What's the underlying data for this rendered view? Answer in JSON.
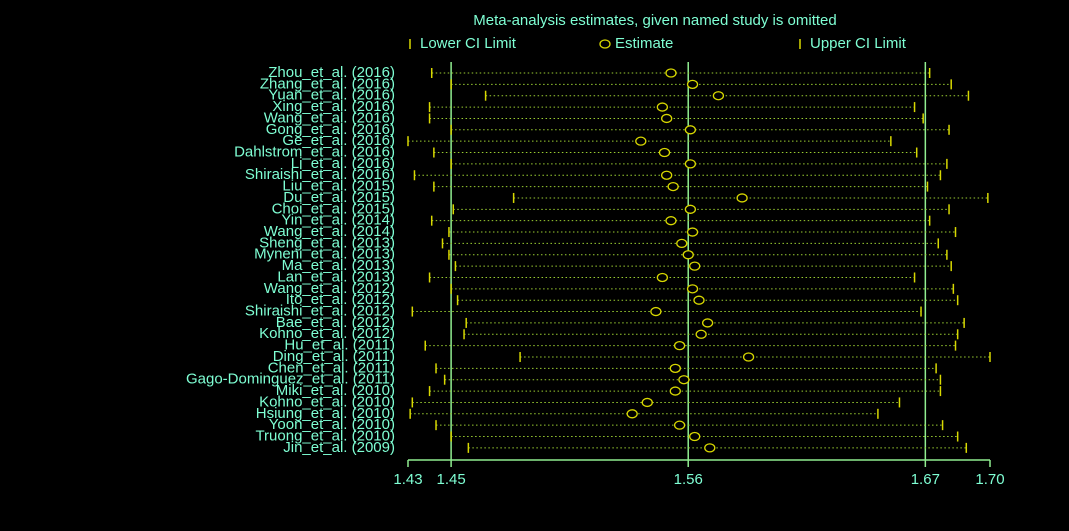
{
  "chart_data": {
    "type": "forest",
    "title": "Meta-analysis estimates, given named study is omitted",
    "categories": [
      "Zhou_et_al. (2016)",
      "Zhang_et_al. (2016)",
      "Yuan_et_al. (2016)",
      "Xing_et_al. (2016)",
      "Wang_et_al. (2016)",
      "Gong_et_al. (2016)",
      "Ge_et_al. (2016)",
      "Dahlstrom_et_al. (2016)",
      "Li_et_al. (2016)",
      "Shiraishi_et_al. (2016)",
      "Liu_et_al. (2015)",
      "Du_et_al. (2015)",
      "Choi_et_al. (2015)",
      "Yin_et_al. (2014)",
      "Wang_et_al. (2014)",
      "Sheng_et_al. (2013)",
      "Myneni_et_al. (2013)",
      "Ma_et_al. (2013)",
      "Lan_et_al. (2013)",
      "Wang_et_al. (2012)",
      "Ito_et_al. (2012)",
      "Shiraishi_et_al. (2012)",
      "Bae_et_al. (2012)",
      "Kohno_et_al. (2012)",
      "Hu_et_al. (2011)",
      "Ding_et_al. (2011)",
      "Chen_et_al. (2011)",
      "Gago-Dominguez_et_al. (2011)",
      "Miki_et_al. (2010)",
      "Kohno_et_al. (2010)",
      "Hsiung_et_al. (2010)",
      "Yoon_et_al. (2010)",
      "Truong_et_al. (2010)",
      "Jin_et_al. (2009)"
    ],
    "series": [
      {
        "name": "Lower CI Limit",
        "color": "#d8d800",
        "values": [
          1.441,
          1.45,
          1.466,
          1.44,
          1.44,
          1.45,
          1.43,
          1.442,
          1.45,
          1.433,
          1.442,
          1.479,
          1.451,
          1.441,
          1.449,
          1.446,
          1.449,
          1.452,
          1.44,
          1.45,
          1.453,
          1.432,
          1.457,
          1.456,
          1.438,
          1.482,
          1.443,
          1.447,
          1.44,
          1.432,
          1.431,
          1.443,
          1.45,
          1.458
        ]
      },
      {
        "name": "Estimate",
        "color": "#d8d800",
        "values": [
          1.552,
          1.562,
          1.574,
          1.548,
          1.55,
          1.561,
          1.538,
          1.549,
          1.561,
          1.55,
          1.553,
          1.585,
          1.561,
          1.552,
          1.562,
          1.557,
          1.56,
          1.563,
          1.548,
          1.562,
          1.565,
          1.545,
          1.569,
          1.566,
          1.556,
          1.588,
          1.554,
          1.558,
          1.554,
          1.541,
          1.534,
          1.556,
          1.563,
          1.57
        ]
      },
      {
        "name": "Upper CI Limit",
        "color": "#d8d800",
        "values": [
          1.672,
          1.682,
          1.69,
          1.665,
          1.669,
          1.681,
          1.654,
          1.666,
          1.68,
          1.677,
          1.671,
          1.699,
          1.681,
          1.672,
          1.684,
          1.676,
          1.68,
          1.682,
          1.665,
          1.683,
          1.685,
          1.668,
          1.688,
          1.685,
          1.684,
          1.7,
          1.675,
          1.677,
          1.677,
          1.658,
          1.648,
          1.678,
          1.685,
          1.689
        ]
      }
    ],
    "xlim": [
      1.43,
      1.7
    ],
    "xticks": [
      1.43,
      1.45,
      1.56,
      1.67,
      {
        "value": 1.7,
        "label": "1.70"
      }
    ],
    "reflines": [
      1.45,
      1.56,
      1.67
    ],
    "refline_color": "#90ee90",
    "connector_color": "#9acd32"
  }
}
